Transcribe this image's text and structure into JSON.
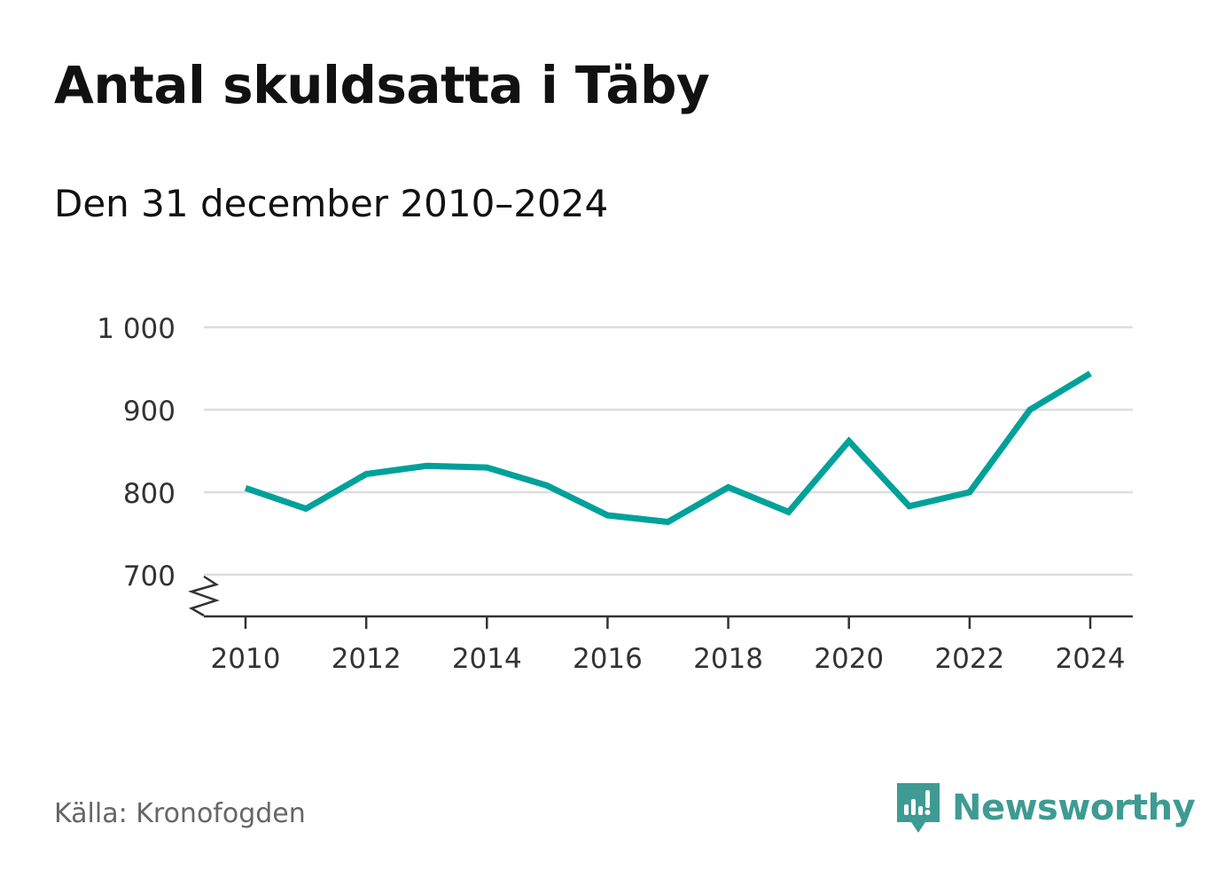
{
  "title": "Antal skuldsatta i Täby",
  "subtitle": "Den 31 december 2010–2024",
  "source": "Källa: Kronofogden",
  "brand": {
    "name": "Newsworthy",
    "icon": "newsworthy-logo-icon",
    "color": "#3e9b93"
  },
  "colors": {
    "line": "#00a19a",
    "grid": "#dddddd",
    "axis": "#333333"
  },
  "chart_data": {
    "type": "line",
    "title": "Antal skuldsatta i Täby",
    "subtitle": "Den 31 december 2010–2024",
    "xlabel": "",
    "ylabel": "",
    "ylim": [
      650,
      1000
    ],
    "y_ticks": [
      {
        "value": 700,
        "label": "700"
      },
      {
        "value": 800,
        "label": "800"
      },
      {
        "value": 900,
        "label": "900"
      },
      {
        "value": 1000,
        "label": "1 000"
      }
    ],
    "x_ticks": [
      2010,
      2012,
      2014,
      2016,
      2018,
      2020,
      2022,
      2024
    ],
    "axis_break": true,
    "grid": true,
    "series": [
      {
        "name": "Antal skuldsatta",
        "x": [
          2010,
          2011,
          2012,
          2013,
          2014,
          2015,
          2016,
          2017,
          2018,
          2019,
          2020,
          2021,
          2022,
          2023,
          2024
        ],
        "values": [
          805,
          780,
          822,
          832,
          830,
          808,
          772,
          764,
          806,
          776,
          862,
          783,
          800,
          900,
          944
        ]
      }
    ]
  }
}
